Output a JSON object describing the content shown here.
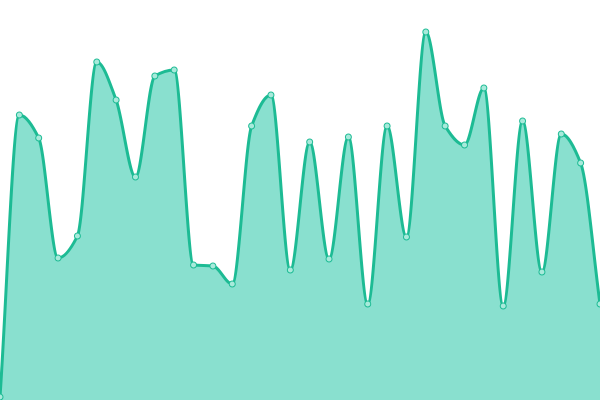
{
  "chart_data": {
    "type": "area",
    "title": "",
    "xlabel": "",
    "ylabel": "",
    "x": [
      0,
      1,
      2,
      3,
      4,
      5,
      6,
      7,
      8,
      9,
      10,
      11,
      12,
      13,
      14,
      15,
      16,
      17,
      18,
      19,
      20,
      21,
      22,
      23,
      24,
      25,
      26,
      27,
      28,
      29,
      30,
      31
    ],
    "values": [
      3,
      285,
      262,
      142,
      164,
      338,
      300,
      223,
      324,
      330,
      135,
      134,
      116,
      274,
      305,
      130,
      258,
      141,
      263,
      96,
      274,
      163,
      368,
      274,
      255,
      312,
      94,
      279,
      128,
      266,
      237,
      96
    ],
    "ylim": [
      0,
      400
    ],
    "grid": false,
    "axes_visible": false,
    "curve": "smooth",
    "colors": {
      "fill": "#89e0cf",
      "line": "#1dbb94",
      "marker_fill": "#a8eadb"
    }
  }
}
